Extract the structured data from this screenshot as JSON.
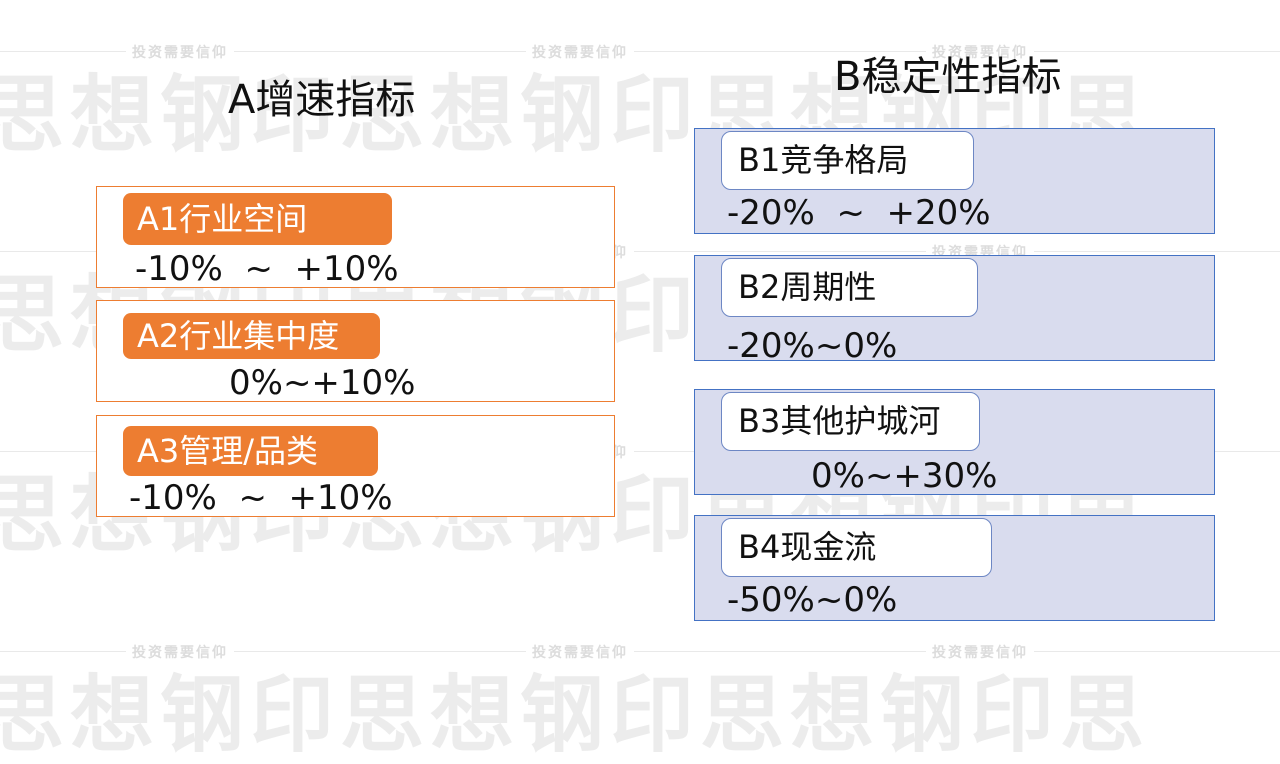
{
  "watermark": {
    "slogan": "投资需要信仰",
    "brand_row": "思想钢印思想钢印思想钢印思"
  },
  "section_a": {
    "title": "A增速指标",
    "items": [
      {
        "label": "A1行业空间",
        "range": "-10%  ~  +10%"
      },
      {
        "label": "A2行业集中度",
        "range": "0%~+10%"
      },
      {
        "label": "A3管理/品类",
        "range": "-10%  ~  +10%"
      }
    ]
  },
  "section_b": {
    "title": "B稳定性指标",
    "items": [
      {
        "label": "B1竞争格局",
        "range": "-20%  ~  +20%"
      },
      {
        "label": "B2周期性",
        "range": "-20%~0%"
      },
      {
        "label": "B3其他护城河",
        "range": "0%~+30%"
      },
      {
        "label": "B4现金流",
        "range": "-50%~0%"
      }
    ]
  },
  "colors": {
    "a_accent": "#ed7d31",
    "b_fill": "#d9dcee",
    "b_border": "#4472c4"
  }
}
